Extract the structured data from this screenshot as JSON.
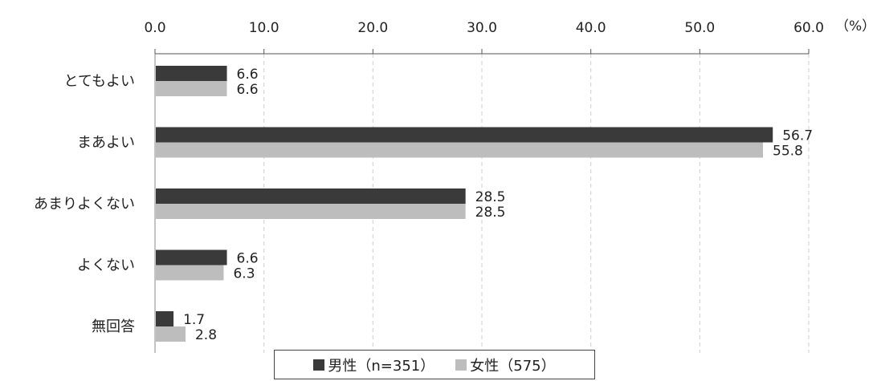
{
  "chart_data": {
    "type": "bar",
    "orientation": "horizontal",
    "unit_label": "（%）",
    "xlim": [
      0,
      60
    ],
    "xticks": [
      "0.0",
      "10.0",
      "20.0",
      "30.0",
      "40.0",
      "50.0",
      "60.0"
    ],
    "grid": "vertical dashed",
    "legend_position": "bottom",
    "categories": [
      "とてもよい",
      "まあよい",
      "あまりよくない",
      "よくない",
      "無回答"
    ],
    "series": [
      {
        "name": "男性（n=351）",
        "color": "#3a3a3a",
        "values": [
          6.6,
          56.7,
          28.5,
          6.6,
          1.7
        ],
        "labels": [
          "6.6",
          "56.7",
          "28.5",
          "6.6",
          "1.7"
        ]
      },
      {
        "name": "女性（575）",
        "color": "#bdbdbd",
        "values": [
          6.6,
          55.8,
          28.5,
          6.3,
          2.8
        ],
        "labels": [
          "6.6",
          "55.8",
          "28.5",
          "6.3",
          "2.8"
        ]
      }
    ]
  }
}
